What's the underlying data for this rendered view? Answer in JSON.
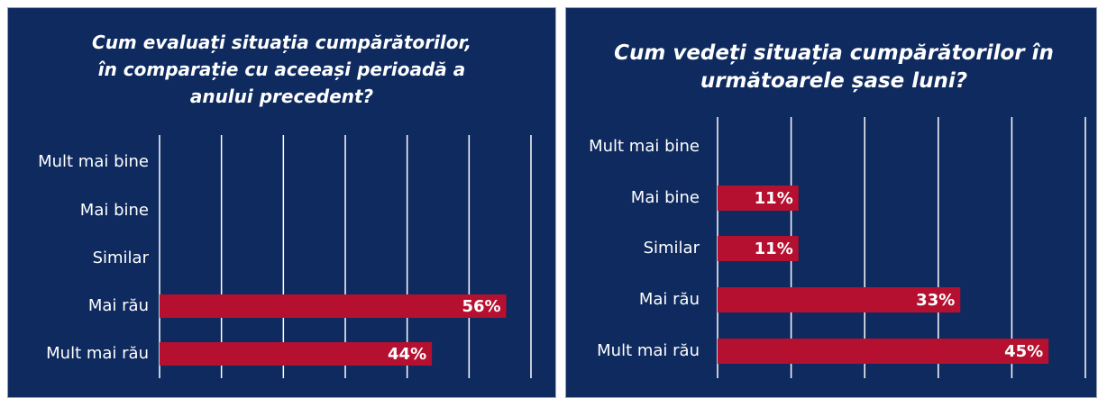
{
  "chart_data": [
    {
      "type": "bar",
      "orientation": "horizontal",
      "title": "Cum evaluați situația cumpărătorilor, în comparație cu aceeași perioadă a anului precedent?",
      "categories": [
        "Mult mai bine",
        "Mai bine",
        "Similar",
        "Mai rău",
        "Mult mai rău"
      ],
      "values": [
        null,
        null,
        null,
        56,
        44
      ],
      "value_labels": [
        null,
        null,
        null,
        "56%",
        "44%"
      ],
      "color": "#b5102f",
      "xlim": [
        0,
        60
      ],
      "xticks": [
        0,
        10,
        20,
        30,
        40,
        50,
        60
      ],
      "grid": true
    },
    {
      "type": "bar",
      "orientation": "horizontal",
      "title": "Cum vedeți situația cumpărătorilor în următoarele șase luni?",
      "categories": [
        "Mult mai bine",
        "Mai bine",
        "Similar",
        "Mai rău",
        "Mult mai rău"
      ],
      "values": [
        null,
        11,
        11,
        33,
        45
      ],
      "value_labels": [
        null,
        "11%",
        "11%",
        "33%",
        "45%"
      ],
      "color": "#b5102f",
      "xlim": [
        0,
        50
      ],
      "xticks": [
        0,
        10,
        20,
        30,
        40,
        50
      ],
      "grid": true
    }
  ]
}
